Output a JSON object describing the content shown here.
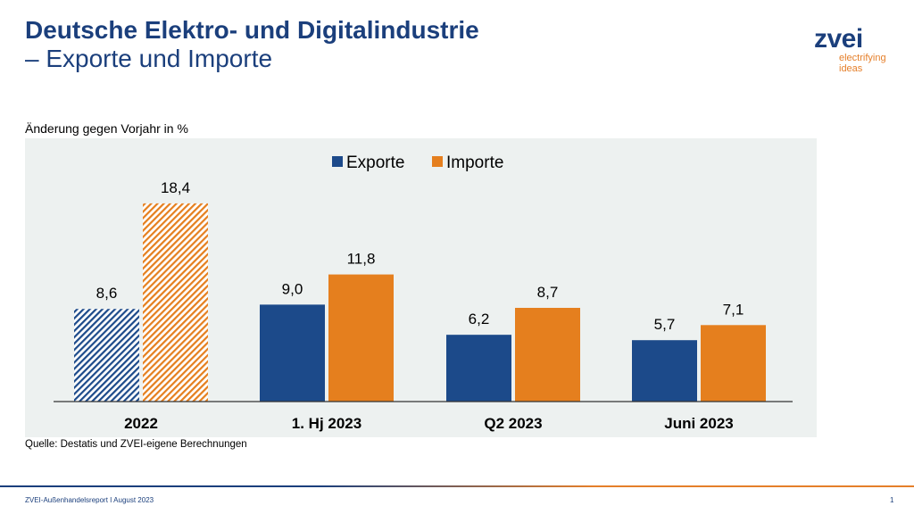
{
  "header": {
    "title_line1": "Deutsche Elektro- und Digitalindustrie",
    "title_line2": "– Exporte und Importe"
  },
  "logo": {
    "name": "zvei",
    "tagline_1": "electrifying",
    "tagline_2": "ideas"
  },
  "footer": {
    "text": "ZVEI-Außenhandelsreport I August 2023",
    "page": "1"
  },
  "colors": {
    "export": "#1c4a8a",
    "import": "#e57f1e",
    "panel": "#edf1f0"
  },
  "chart_data": {
    "type": "bar",
    "ylabel": "Änderung gegen Vorjahr in %",
    "source": "Quelle: Destatis und ZVEI-eigene Berechnungen",
    "categories": [
      "2022",
      "1. Hj 2023",
      "Q2 2023",
      "Juni 2023"
    ],
    "hatched": [
      true,
      false,
      false,
      false
    ],
    "ylim": [
      0,
      20
    ],
    "legend_position": "top-center",
    "series": [
      {
        "name": "Exporte",
        "values": [
          8.6,
          9.0,
          6.2,
          5.7
        ],
        "labels": [
          "8,6",
          "9,0",
          "6,2",
          "5,7"
        ]
      },
      {
        "name": "Importe",
        "values": [
          18.4,
          11.8,
          8.7,
          7.1
        ],
        "labels": [
          "18,4",
          "11,8",
          "8,7",
          "7,1"
        ]
      }
    ]
  }
}
